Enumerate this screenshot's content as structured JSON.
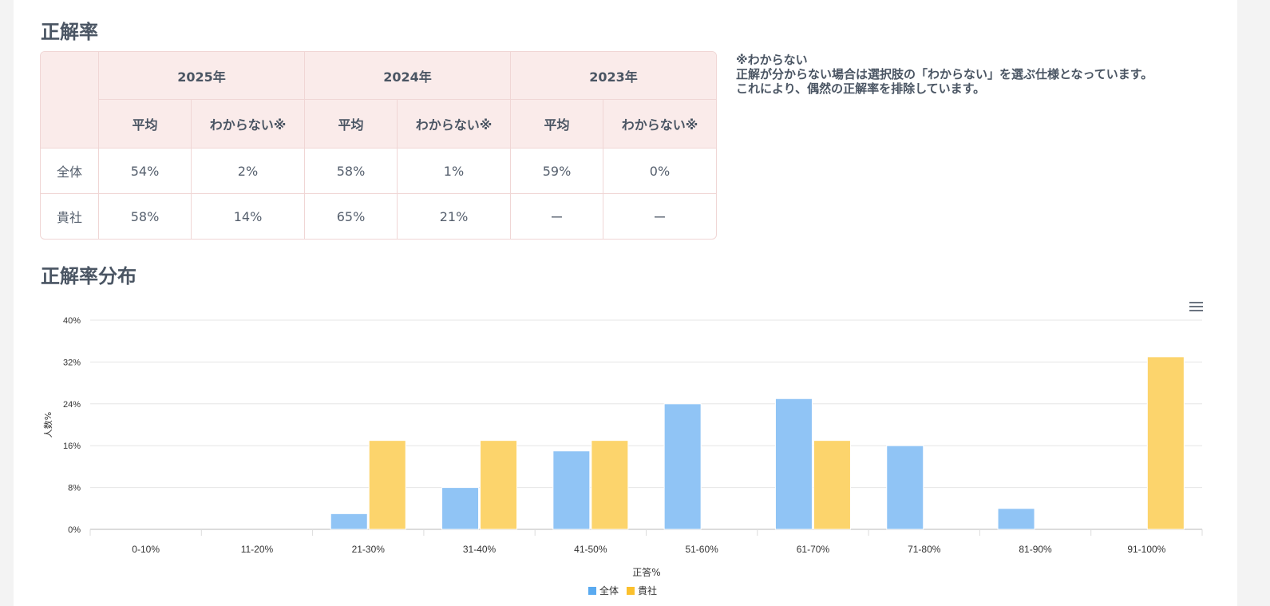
{
  "section1_title": "正解率",
  "table": {
    "years": [
      "2025年",
      "2024年",
      "2023年"
    ],
    "sub_headers": [
      "平均",
      "わからない※"
    ],
    "rows": [
      {
        "label": "全体",
        "values": [
          "54%",
          "2%",
          "58%",
          "1%",
          "59%",
          "0%"
        ]
      },
      {
        "label": "貴社",
        "values": [
          "58%",
          "14%",
          "65%",
          "21%",
          "ー",
          "ー"
        ]
      }
    ]
  },
  "note": {
    "title": "※わからない",
    "line1": "正解が分からない場合は選択肢の「わからない」を選ぶ仕様となっています。",
    "line2": "これにより、偶然の正解率を排除しています。"
  },
  "section2_title": "正解率分布",
  "chart_data": {
    "type": "bar",
    "categories": [
      "0-10%",
      "11-20%",
      "21-30%",
      "31-40%",
      "41-50%",
      "51-60%",
      "61-70%",
      "71-80%",
      "81-90%",
      "91-100%"
    ],
    "series": [
      {
        "name": "全体",
        "color": "#90c4f5",
        "values": [
          0,
          0,
          3,
          8,
          15,
          24,
          25,
          16,
          4,
          0
        ]
      },
      {
        "name": "貴社",
        "color": "#fcd46c",
        "values": [
          0,
          0,
          17,
          17,
          17,
          0,
          17,
          0,
          0,
          33
        ]
      }
    ],
    "xlabel": "正答%",
    "ylabel": "人数%",
    "ylim": [
      0,
      40
    ],
    "yticks": [
      "0%",
      "8%",
      "16%",
      "24%",
      "32%",
      "40%"
    ],
    "grid": true,
    "legend": "bottom"
  },
  "legend_colors": {
    "全体": "#5aaaf0",
    "貴社": "#fbc02d"
  }
}
